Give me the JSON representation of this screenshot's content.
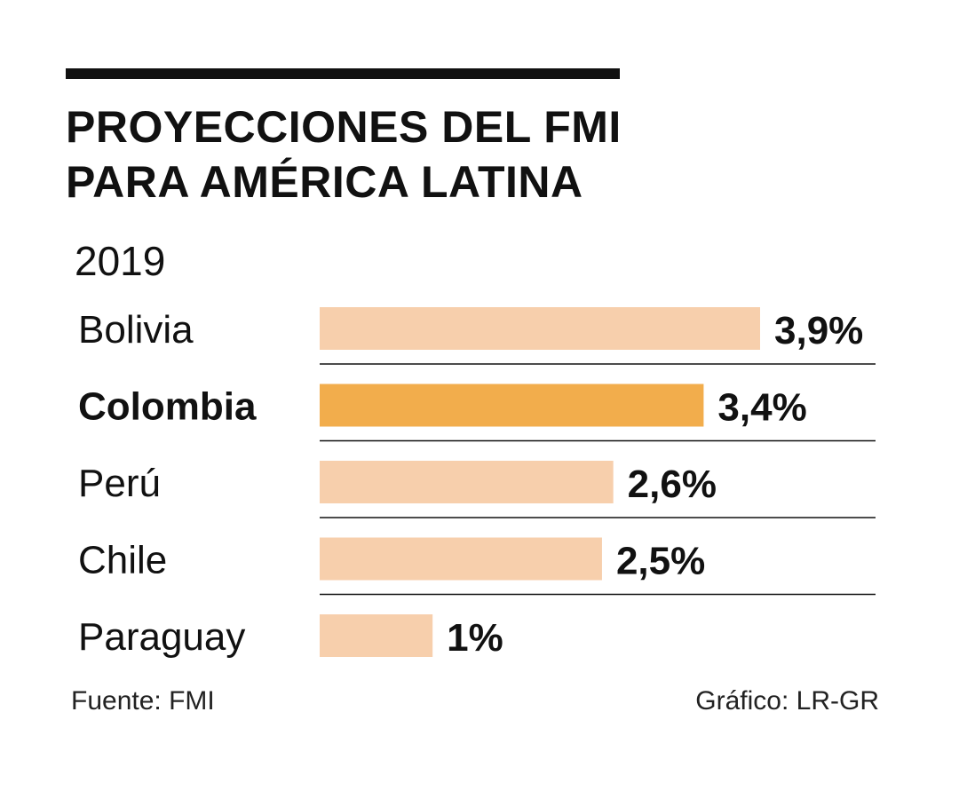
{
  "title_lines": [
    "PROYECCIONES DEL FMI",
    "PARA AMÉRICA LATINA"
  ],
  "year": "2019",
  "source": "Fuente: FMI",
  "credit": "Gráfico: LR-GR",
  "colors": {
    "bar": "#f7cfac",
    "highlight": "#f2ad4c",
    "text": "#111111",
    "rule": "#111111"
  },
  "chart_data": {
    "type": "bar",
    "orientation": "horizontal",
    "title": "PROYECCIONES DEL FMI PARA AMÉRICA LATINA",
    "subtitle": "2019",
    "categories": [
      "Bolivia",
      "Colombia",
      "Perú",
      "Chile",
      "Paraguay"
    ],
    "values": [
      3.9,
      3.4,
      2.6,
      2.5,
      1
    ],
    "value_labels": [
      "3,9%",
      "3,4%",
      "2,6%",
      "2,5%",
      "1%"
    ],
    "highlight": "Colombia",
    "xlim": [
      0,
      3.9
    ],
    "xlabel": "",
    "ylabel": "",
    "grid": false
  }
}
